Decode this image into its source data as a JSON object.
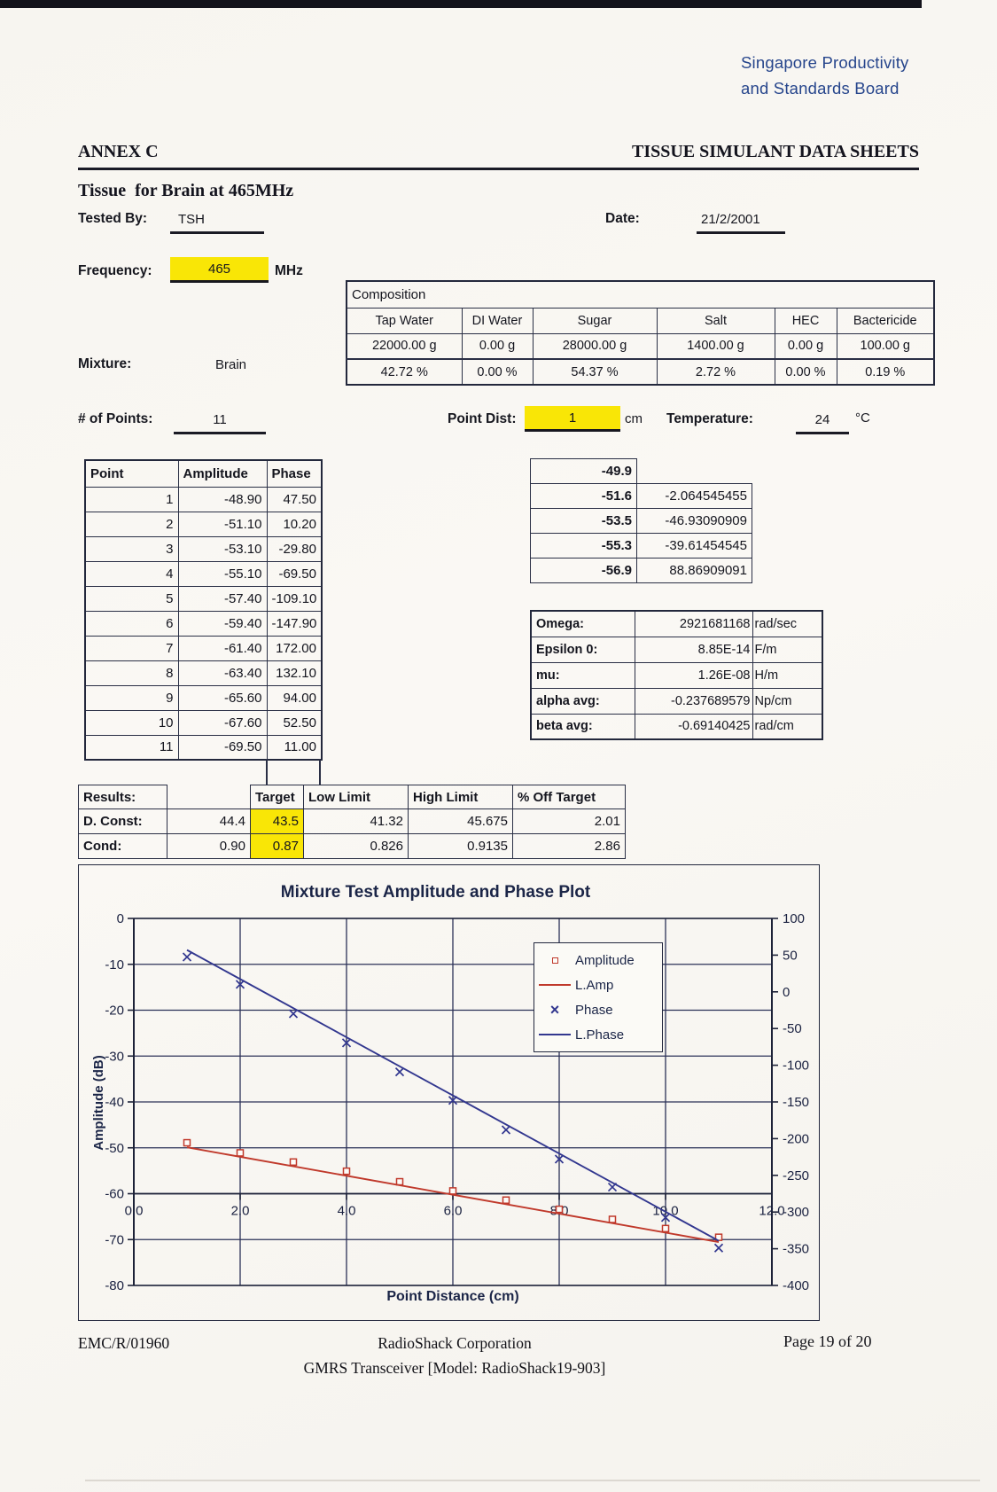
{
  "page": {
    "org_line1": "Singapore Productivity",
    "org_line2": "and Standards Board",
    "annex": "ANNEX C",
    "sheet_title": "TISSUE SIMULANT DATA SHEETS",
    "subtitle": "Tissue  for Brain at 465MHz"
  },
  "form": {
    "tested_by_label": "Tested By:",
    "tested_by": "TSH",
    "date_label": "Date:",
    "date": "21/2/2001",
    "frequency_label": "Frequency:",
    "frequency": "465",
    "frequency_unit": "MHz",
    "mixture_label": "Mixture:",
    "mixture": "Brain",
    "points_label": "# of Points:",
    "points": "11",
    "point_dist_label": "Point Dist:",
    "point_dist": "1",
    "point_dist_unit": "cm",
    "temperature_label": "Temperature:",
    "temperature": "24",
    "temperature_unit": "°C"
  },
  "composition": {
    "title": "Composition",
    "headers": [
      "Tap Water",
      "DI Water",
      "Sugar",
      "Salt",
      "HEC",
      "Bactericide"
    ],
    "grams": [
      "22000.00 g",
      "0.00 g",
      "28000.00 g",
      "1400.00 g",
      "0.00 g",
      "100.00 g"
    ],
    "percent": [
      "42.72 %",
      "0.00 %",
      "54.37 %",
      "2.72 %",
      "0.00 %",
      "0.19 %"
    ]
  },
  "points_table": {
    "headers": [
      "Point",
      "Amplitude",
      "Phase"
    ],
    "rows": [
      [
        "1",
        "-48.90",
        "47.50"
      ],
      [
        "2",
        "-51.10",
        "10.20"
      ],
      [
        "3",
        "-53.10",
        "-29.80"
      ],
      [
        "4",
        "-55.10",
        "-69.50"
      ],
      [
        "5",
        "-57.40",
        "-109.10"
      ],
      [
        "6",
        "-59.40",
        "-147.90"
      ],
      [
        "7",
        "-61.40",
        "172.00"
      ],
      [
        "8",
        "-63.40",
        "132.10"
      ],
      [
        "9",
        "-65.60",
        "94.00"
      ],
      [
        "10",
        "-67.60",
        "52.50"
      ],
      [
        "11",
        "-69.50",
        "11.00"
      ]
    ]
  },
  "fit_table": {
    "rows": [
      [
        "-49.9",
        ""
      ],
      [
        "-51.6",
        "-2.064545455"
      ],
      [
        "-53.5",
        "-46.93090909"
      ],
      [
        "-55.3",
        "-39.61454545"
      ],
      [
        "-56.9",
        "88.86909091"
      ]
    ]
  },
  "constants_table": {
    "rows": [
      {
        "label": "Omega:",
        "value": "2921681168",
        "unit": "rad/sec"
      },
      {
        "label": "Epsilon 0:",
        "value": "8.85E-14",
        "unit": "F/m"
      },
      {
        "label": "mu:",
        "value": "1.26E-08",
        "unit": "H/m"
      },
      {
        "label": "alpha avg:",
        "value": "-0.237689579",
        "unit": "Np/cm"
      },
      {
        "label": "beta avg:",
        "value": "-0.69140425",
        "unit": "rad/cm"
      }
    ]
  },
  "results_table": {
    "header_label": "Results:",
    "headers": [
      "Target",
      "Low Limit",
      "High Limit",
      "% Off Target"
    ],
    "rows": [
      {
        "label": "D. Const:",
        "value": "44.4",
        "target": "43.5",
        "low": "41.32",
        "high": "45.675",
        "off": "2.01"
      },
      {
        "label": "Cond:",
        "value": "0.90",
        "target": "0.87",
        "low": "0.826",
        "high": "0.9135",
        "off": "2.86"
      }
    ]
  },
  "chart_data": {
    "type": "line",
    "title": "Mixture Test Amplitude and Phase Plot",
    "xlabel": "Point Distance (cm)",
    "ylabel_left": "Amplitude (dB)",
    "xlim": [
      0,
      12
    ],
    "left_ylim": [
      -80,
      0
    ],
    "right_ylim": [
      -400,
      100
    ],
    "x_axis_cross": -60,
    "x_ticks": [
      "0.0",
      "2.0",
      "4.0",
      "6.0",
      "8.0",
      "10.0",
      "12.0"
    ],
    "left_ticks": [
      "0",
      "-10",
      "-20",
      "-30",
      "-40",
      "-50",
      "-60",
      "-70",
      "-80"
    ],
    "right_ticks": [
      "100",
      "50",
      "0",
      "-50",
      "-100",
      "-150",
      "-200",
      "-250",
      "-300",
      "-350",
      "-400"
    ],
    "legend": [
      "Amplitude",
      "L.Amp",
      "Phase",
      "L.Phase"
    ],
    "legend_position": "upper-center",
    "grid": true,
    "colors": {
      "amplitude": "#c0392b",
      "phase": "#32378f",
      "grid": "#2b3157",
      "axis": "#1d2238",
      "highlight": "#f9e606"
    },
    "series": [
      {
        "name": "Amplitude",
        "axis": "left",
        "marker": "square",
        "line": false,
        "color": "#c0392b",
        "x": [
          1,
          2,
          3,
          4,
          5,
          6,
          7,
          8,
          9,
          10,
          11
        ],
        "y": [
          -48.9,
          -51.1,
          -53.1,
          -55.1,
          -57.4,
          -59.4,
          -61.4,
          -63.4,
          -65.6,
          -67.6,
          -69.5
        ]
      },
      {
        "name": "L.Amp",
        "axis": "left",
        "marker": null,
        "line": true,
        "color": "#c0392b",
        "x": [
          1,
          11
        ],
        "y": [
          -49.9,
          -70.55
        ]
      },
      {
        "name": "Phase",
        "axis": "right",
        "marker": "x",
        "line": false,
        "color": "#32378f",
        "x": [
          1,
          2,
          3,
          4,
          5,
          6,
          7,
          8,
          9,
          10,
          11
        ],
        "y": [
          47.5,
          10.2,
          -29.8,
          -69.5,
          -109.1,
          -147.9,
          -188.0,
          -227.9,
          -266.0,
          -307.5,
          -349.0
        ]
      },
      {
        "name": "L.Phase",
        "axis": "right",
        "marker": null,
        "line": true,
        "color": "#32378f",
        "x": [
          1,
          11
        ],
        "y": [
          57.0,
          -339.2
        ]
      }
    ]
  },
  "footer": {
    "doc_ref": "EMC/R/01960",
    "company": "RadioShack Corporation",
    "product": "GMRS Transceiver [Model: RadioShack19-903]",
    "page": "Page 19 of 20"
  }
}
